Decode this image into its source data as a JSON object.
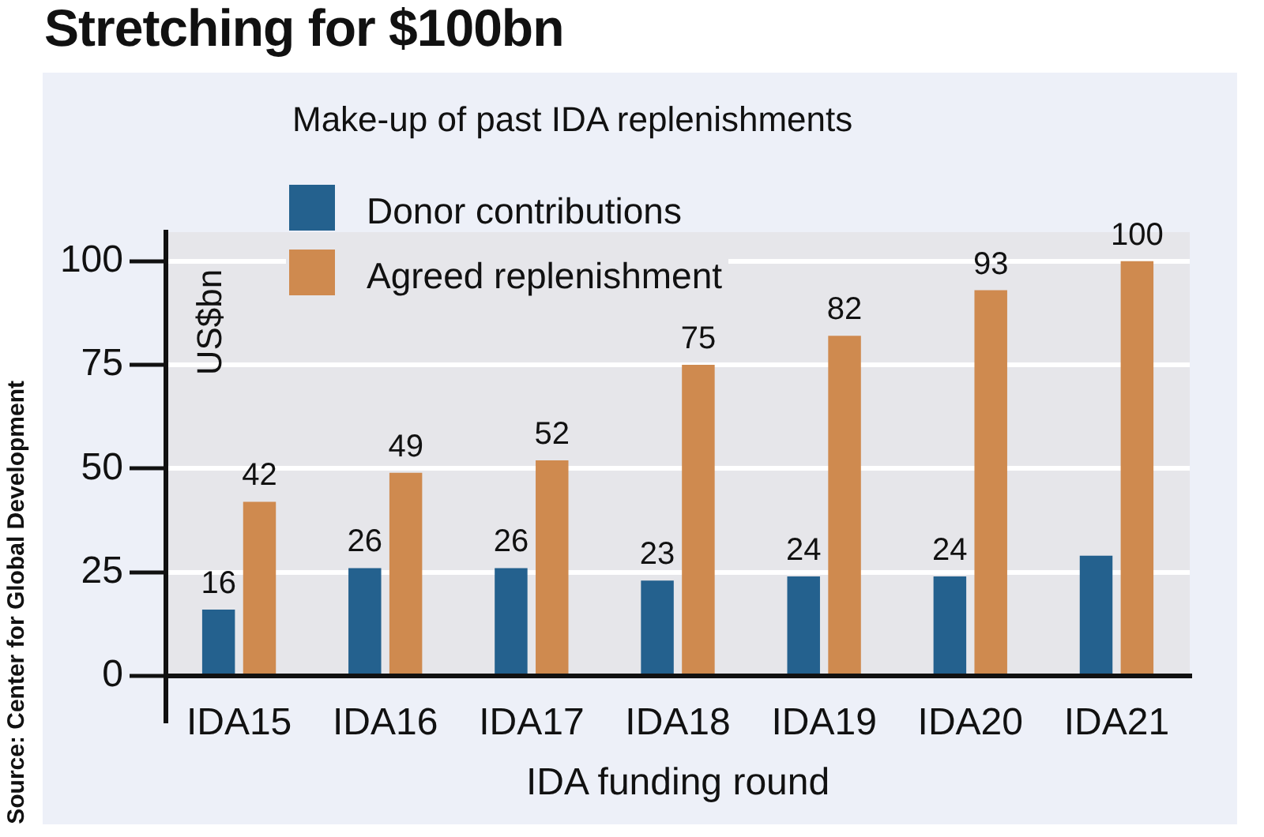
{
  "chart_data": {
    "type": "bar",
    "title": "Stretching for $100bn",
    "subtitle": "Make-up of past IDA replenishments",
    "xlabel": "IDA funding round",
    "ylabel": "US$bn",
    "annotations": [
      "Source: Center for Global Development"
    ],
    "categories": [
      "IDA15",
      "IDA16",
      "IDA17",
      "IDA18",
      "IDA19",
      "IDA20",
      "IDA21"
    ],
    "series": [
      {
        "name": "Donor contributions",
        "color": "#24618e",
        "values": [
          16,
          26,
          26,
          23,
          24,
          24,
          29
        ],
        "value_labels": [
          "16",
          "26",
          "26",
          "23",
          "24",
          "24",
          null
        ]
      },
      {
        "name": "Agreed replenishment",
        "color": "#cf8a4f",
        "values": [
          42,
          49,
          52,
          75,
          82,
          93,
          100
        ],
        "value_labels": [
          "42",
          "49",
          "52",
          "75",
          "82",
          "93",
          "100"
        ]
      }
    ],
    "ylim": [
      0,
      107
    ],
    "yticks": [
      0,
      25,
      50,
      75,
      100
    ],
    "grid": "y",
    "legend": "top left"
  }
}
